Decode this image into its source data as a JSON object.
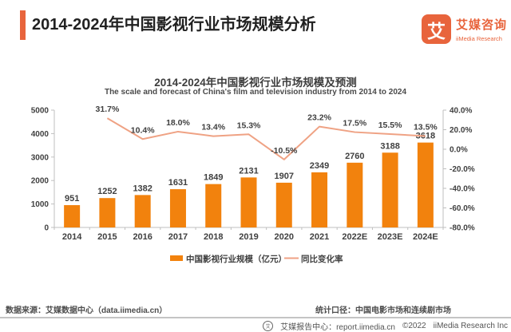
{
  "header": {
    "title": "2014-2024年中国影视行业市场规模分析"
  },
  "logo": {
    "mark": "艾",
    "name_cn": "艾媒咨询",
    "name_en": "iiMedia Research",
    "color": "#E8643C"
  },
  "chart_data": {
    "type": "bar+line",
    "title": "2014-2024年中国影视行业市场规模及预测",
    "subtitle": "The scale and forecast of China's film and television industry from 2014 to 2024",
    "categories": [
      "2014",
      "2015",
      "2016",
      "2017",
      "2018",
      "2019",
      "2020",
      "2021",
      "2022E",
      "2023E",
      "2024E"
    ],
    "series": [
      {
        "name": "中国影视行业规模（亿元）",
        "type": "bar",
        "color": "#F2820D",
        "values": [
          951,
          1252,
          1382,
          1631,
          1849,
          2131,
          1907,
          2349,
          2760,
          3188,
          3618
        ]
      },
      {
        "name": "同比变化率",
        "type": "line",
        "color": "#EFA284",
        "values": [
          null,
          31.7,
          10.4,
          18.0,
          13.4,
          15.3,
          -10.5,
          23.2,
          17.5,
          15.5,
          13.5
        ],
        "labels": [
          "",
          "31.7%",
          "10.4%",
          "18.0%",
          "13.4%",
          "15.3%",
          "-10.5%",
          "23.2%",
          "17.5%",
          "15.5%",
          "13.5%"
        ]
      }
    ],
    "left_axis": {
      "min": 0,
      "max": 5000,
      "ticks": [
        0,
        1000,
        2000,
        3000,
        4000,
        5000
      ]
    },
    "right_axis": {
      "min": -80,
      "max": 40,
      "ticks": [
        {
          "label": "40.0%",
          "value": 40
        },
        {
          "label": "20.0%",
          "value": 20
        },
        {
          "label": "0.0%",
          "value": 0
        },
        {
          "label": "-20.0%",
          "value": -20
        },
        {
          "label": "-40.0%",
          "value": -40
        },
        {
          "label": "-60.0%",
          "value": -60
        },
        {
          "label": "-80.0%",
          "value": -80
        }
      ]
    },
    "grid": false,
    "legend_position": "bottom"
  },
  "footer": {
    "source": "数据来源：艾媒数据中心（data.iimedia.cn）",
    "caliber": "统计口径：中国电影市场和连续剧市场",
    "report": "艾媒报告中心：report.iimedia.cn",
    "copyright": "©2022",
    "company": "iiMedia Research Inc"
  }
}
